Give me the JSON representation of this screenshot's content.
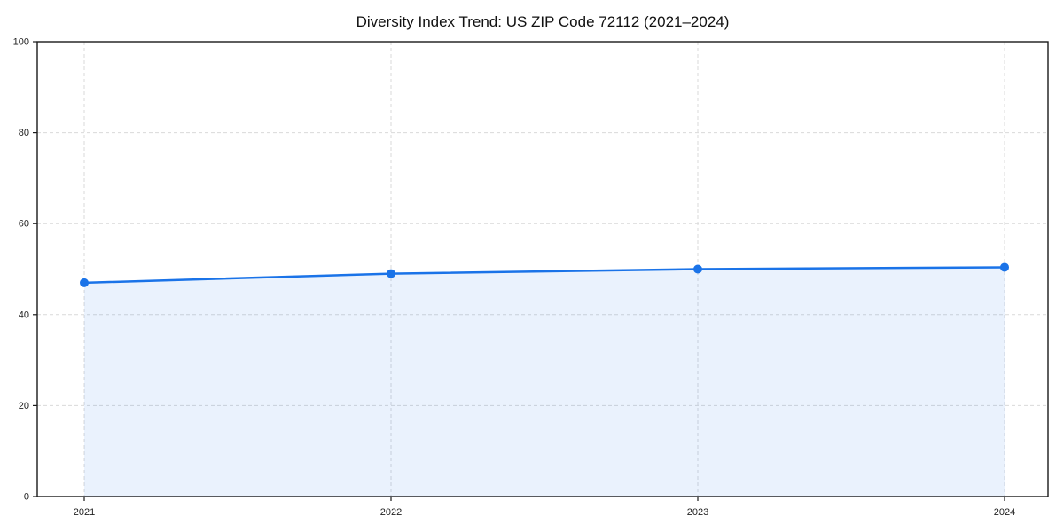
{
  "chart_data": {
    "type": "line",
    "title": "Diversity Index Trend: US ZIP Code 72112 (2021–2024)",
    "categories": [
      "2021",
      "2022",
      "2023",
      "2024"
    ],
    "series": [
      {
        "name": "Diversity Index",
        "values": [
          47.0,
          49.0,
          50.0,
          50.4
        ]
      }
    ],
    "xlabel": "",
    "ylabel": "",
    "ylim": [
      0,
      100
    ],
    "yticks": [
      0,
      20,
      40,
      60,
      80,
      100
    ],
    "grid": "dashed-both-axes",
    "legend_position": "none",
    "colors": {
      "line": "#1a73e8",
      "marker": "#1a73e8",
      "fill": "#1a73e8",
      "fill_opacity": 0.09,
      "gridline": "#d9d9d9",
      "spine": "#1a1a1a",
      "tick_text": "#222222",
      "title_text": "#111111",
      "background": "#ffffff"
    }
  }
}
